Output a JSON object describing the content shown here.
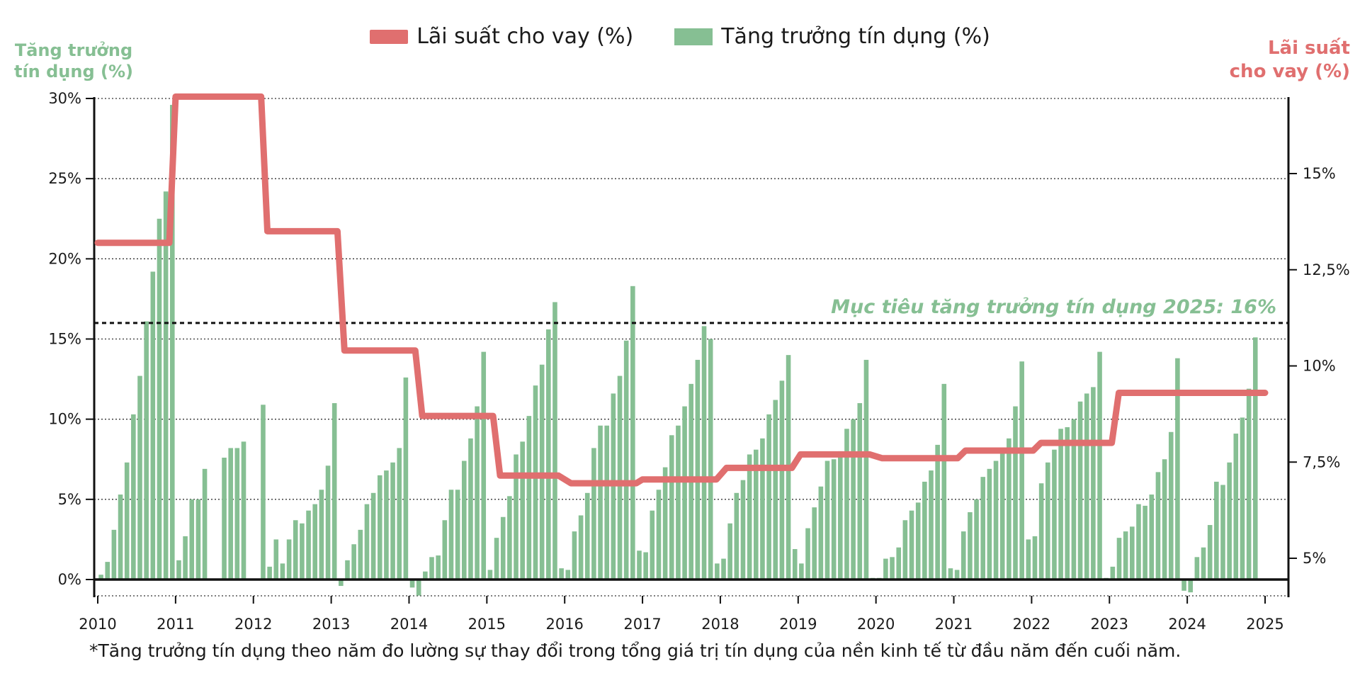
{
  "legend": {
    "line_label": "Lãi suất cho vay (%)",
    "bar_label": "Tăng trưởng tín dụng (%)"
  },
  "colors": {
    "line": "#e06f6f",
    "bars": "#86bf93",
    "left_axis_title": "#86bf93",
    "right_axis_title": "#e06f6f",
    "target_label": "#86bf93",
    "axis": "#111111"
  },
  "axis_titles": {
    "left": [
      "Tăng trưởng",
      "tín dụng (%)"
    ],
    "right": [
      "Lãi suất",
      "cho vay (%)"
    ]
  },
  "target_label": "Mục tiêu tăng trưởng tín dụng 2025: 16%",
  "footnote": "*Tăng trưởng tín dụng theo năm đo lường sự thay đổi trong tổng giá trị tín dụng của nền kinh tế từ đầu năm đến cuối năm.",
  "chart_data": {
    "type": "bar+line",
    "x_start": 2010,
    "x_end": 2025,
    "x_ticks": [
      "2010",
      "2011",
      "2012",
      "2013",
      "2014",
      "2015",
      "2016",
      "2017",
      "2018",
      "2019",
      "2020",
      "2021",
      "2022",
      "2023",
      "2024",
      "2025"
    ],
    "left_axis": {
      "ylim": [
        -1,
        30
      ],
      "ticks": [
        0,
        5,
        10,
        15,
        20,
        25,
        30
      ],
      "tick_labels": [
        "0%",
        "5%",
        "10%",
        "15%",
        "20%",
        "25%",
        "30%"
      ],
      "grid": true
    },
    "right_axis": {
      "ticks": [
        5,
        7.5,
        10,
        12.5,
        15
      ],
      "tick_labels": [
        "5%",
        "7,5%",
        "10%",
        "12,5%",
        "15%"
      ],
      "anchor_low": 5,
      "anchor_high": 15
    },
    "target_line": {
      "value": 16,
      "style": "dashed"
    },
    "series": [
      {
        "kind": "bar",
        "values": [
          0.3,
          1.1,
          3.1,
          5.3,
          7.3,
          10.3,
          12.7,
          16.1,
          19.2,
          22.5,
          24.2,
          29.6,
          1.2,
          2.7,
          5.0,
          5.0,
          6.9,
          0,
          0,
          7.6,
          8.2,
          8.2,
          8.6,
          0,
          0,
          10.9,
          0.8,
          2.5,
          1.0,
          2.5,
          3.7,
          3.5,
          4.3,
          4.7,
          5.6,
          7.1,
          11.0,
          -0.4,
          1.2,
          2.2,
          3.1,
          4.7,
          5.4,
          6.5,
          6.8,
          7.3,
          8.2,
          12.6,
          -0.5,
          -1.0,
          0.5,
          1.4,
          1.5,
          3.7,
          5.6,
          5.6,
          7.4,
          8.8,
          10.8,
          14.2,
          0.6,
          2.6,
          3.9,
          5.2,
          7.8,
          8.6,
          10.2,
          12.1,
          13.4,
          15.6,
          17.3,
          0.7,
          0.6,
          3.0,
          4.0,
          5.4,
          8.2,
          9.6,
          9.6,
          11.6,
          12.7,
          14.9,
          18.3,
          1.8,
          1.7,
          4.3,
          5.6,
          7.0,
          9.0,
          9.6,
          10.8,
          12.2,
          13.7,
          15.8,
          15.0,
          1.0,
          1.3,
          3.5,
          5.4,
          6.2,
          7.8,
          8.1,
          8.8,
          10.3,
          11.2,
          12.4,
          14.0,
          1.9,
          1.0,
          3.2,
          4.5,
          5.8,
          7.4,
          7.5,
          8.0,
          9.4,
          10.0,
          11.0,
          13.7,
          0.1,
          0.1,
          1.3,
          1.4,
          2.0,
          3.7,
          4.3,
          4.8,
          6.1,
          6.8,
          8.4,
          12.2,
          0.7,
          0.6,
          3.0,
          4.2,
          5.0,
          6.4,
          6.9,
          7.4,
          8.1,
          8.8,
          10.8,
          13.6,
          2.5,
          2.7,
          6.0,
          7.3,
          8.1,
          9.4,
          9.5,
          10.0,
          11.1,
          11.6,
          12.0,
          14.2,
          0.1,
          0.8,
          2.6,
          3.0,
          3.3,
          4.7,
          4.6,
          5.3,
          6.7,
          7.5,
          9.2,
          13.8,
          -0.7,
          -0.8,
          1.4,
          2.0,
          3.4,
          6.1,
          5.9,
          7.3,
          9.1,
          10.1,
          11.9,
          15.1
        ]
      },
      {
        "kind": "line",
        "steps": [
          [
            2010.0,
            13.2
          ],
          [
            2010.92,
            13.2
          ],
          [
            2011.0,
            17.0
          ],
          [
            2012.1,
            17.0
          ],
          [
            2012.18,
            13.5
          ],
          [
            2013.08,
            13.5
          ],
          [
            2013.17,
            10.4
          ],
          [
            2014.08,
            10.4
          ],
          [
            2014.17,
            8.7
          ],
          [
            2015.08,
            8.7
          ],
          [
            2015.17,
            7.15
          ],
          [
            2015.92,
            7.15
          ],
          [
            2016.08,
            6.95
          ],
          [
            2016.92,
            6.95
          ],
          [
            2017.0,
            7.05
          ],
          [
            2017.95,
            7.05
          ],
          [
            2018.08,
            7.35
          ],
          [
            2018.92,
            7.35
          ],
          [
            2019.03,
            7.7
          ],
          [
            2019.92,
            7.7
          ],
          [
            2020.08,
            7.6
          ],
          [
            2021.05,
            7.6
          ],
          [
            2021.15,
            7.8
          ],
          [
            2022.02,
            7.8
          ],
          [
            2022.12,
            8.0
          ],
          [
            2023.03,
            8.0
          ],
          [
            2023.12,
            9.3
          ],
          [
            2025.0,
            9.3
          ]
        ]
      }
    ]
  }
}
